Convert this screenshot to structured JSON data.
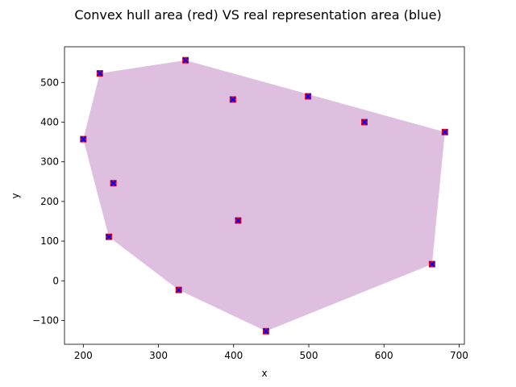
{
  "chart_data": {
    "type": "scatter",
    "title": "Convex hull area (red) VS real representation area (blue)",
    "xlabel": "x",
    "ylabel": "y",
    "xlim": [
      175,
      707
    ],
    "ylim": [
      -160,
      590
    ],
    "xticks": [
      200,
      300,
      400,
      500,
      600,
      700
    ],
    "yticks": [
      -100,
      0,
      100,
      200,
      300,
      400,
      500
    ],
    "ytick_labels": [
      "−100",
      "0",
      "100",
      "200",
      "300",
      "400",
      "500"
    ],
    "grid": false,
    "colors": {
      "hull_fill": "#bf7fbf",
      "marker_red": "#ff0000",
      "marker_blue": "#0000ff"
    },
    "points": [
      {
        "x": 222,
        "y": 523
      },
      {
        "x": 336,
        "y": 556
      },
      {
        "x": 399,
        "y": 457
      },
      {
        "x": 499,
        "y": 465
      },
      {
        "x": 574,
        "y": 400
      },
      {
        "x": 681,
        "y": 375
      },
      {
        "x": 200,
        "y": 357
      },
      {
        "x": 240,
        "y": 246
      },
      {
        "x": 406,
        "y": 152
      },
      {
        "x": 234,
        "y": 111
      },
      {
        "x": 664,
        "y": 42
      },
      {
        "x": 327,
        "y": -23
      },
      {
        "x": 443,
        "y": -127
      }
    ],
    "hull": [
      {
        "x": 222,
        "y": 523
      },
      {
        "x": 336,
        "y": 556
      },
      {
        "x": 681,
        "y": 375
      },
      {
        "x": 664,
        "y": 42
      },
      {
        "x": 443,
        "y": -127
      },
      {
        "x": 327,
        "y": -23
      },
      {
        "x": 234,
        "y": 111
      },
      {
        "x": 200,
        "y": 357
      }
    ]
  }
}
